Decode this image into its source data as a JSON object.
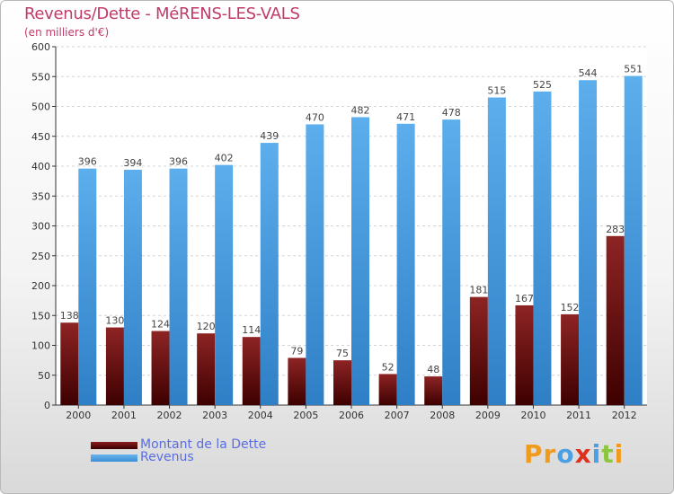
{
  "header": {
    "title": "Revenus/Dette - MéRENS-LES-VALS",
    "subtitle": "(en milliers d'€)"
  },
  "legend": {
    "debt_label": "Montant de la Dette",
    "revenue_label": "Revenus"
  },
  "logo": {
    "text": "Proxiti",
    "letters": [
      "P",
      "r",
      "o",
      "x",
      "i",
      "t",
      "i"
    ]
  },
  "colors": {
    "debt": "#7a1616",
    "revenue": "#4aa0e2",
    "title": "#c03a6a",
    "legend_text": "#5a6de0",
    "logo_letters": [
      "#f29a1c",
      "#f29a1c",
      "#4aa0e2",
      "#e0311f",
      "#4aa0e2",
      "#8cc63f",
      "#f29a1c"
    ]
  },
  "chart_data": {
    "type": "bar",
    "title": "Revenus/Dette - MéRENS-LES-VALS",
    "subtitle": "(en milliers d'€)",
    "categories": [
      "2000",
      "2001",
      "2002",
      "2003",
      "2004",
      "2005",
      "2006",
      "2007",
      "2008",
      "2009",
      "2010",
      "2011",
      "2012"
    ],
    "series": [
      {
        "name": "Montant de la Dette",
        "values": [
          138,
          130,
          124,
          120,
          114,
          79,
          75,
          52,
          48,
          181,
          167,
          152,
          283
        ]
      },
      {
        "name": "Revenus",
        "values": [
          396,
          394,
          396,
          402,
          439,
          470,
          482,
          471,
          478,
          515,
          525,
          544,
          551
        ]
      }
    ],
    "ylim": [
      0,
      600
    ],
    "yticks": [
      0,
      50,
      100,
      150,
      200,
      250,
      300,
      350,
      400,
      450,
      500,
      550,
      600
    ],
    "grid": true,
    "legend_position": "bottom-left"
  }
}
